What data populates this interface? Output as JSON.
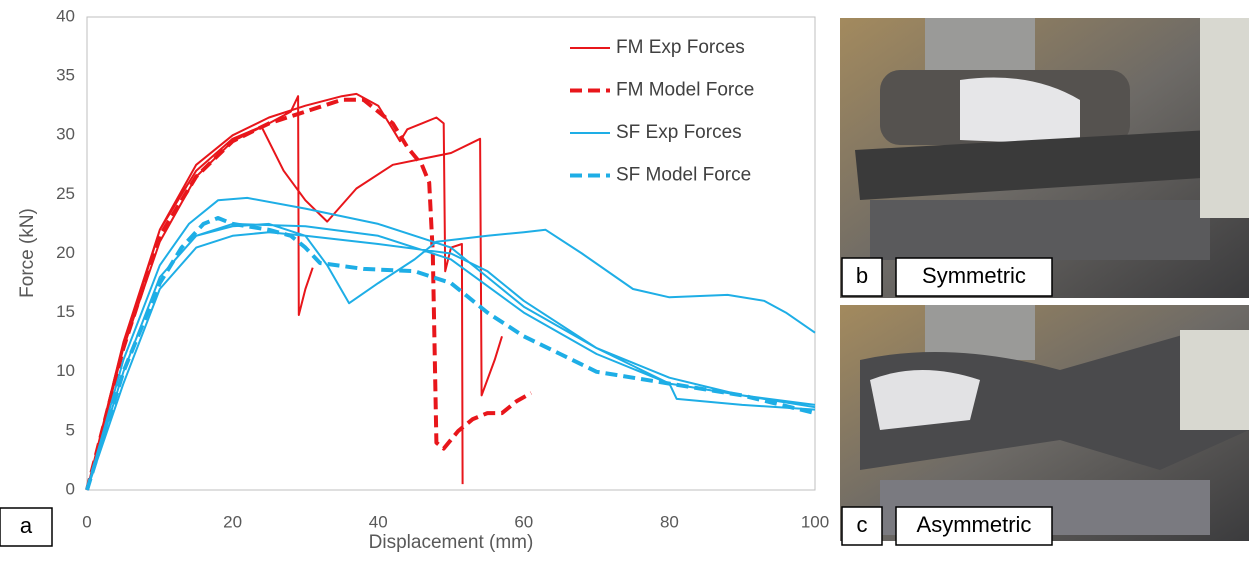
{
  "chart_data": {
    "type": "line",
    "xlabel": "Displacement (mm)",
    "ylabel": "Force (kN)",
    "xlim": [
      0,
      100
    ],
    "ylim": [
      0,
      40
    ],
    "xticks": [
      0,
      20,
      40,
      60,
      80,
      100
    ],
    "yticks": [
      0,
      5,
      10,
      15,
      20,
      25,
      30,
      35,
      40
    ],
    "grid": false,
    "legend": "upper right",
    "series": [
      {
        "name": "FM Exp Forces",
        "color": "#e8161b",
        "dash": false,
        "x": [
          0,
          5,
          10,
          15,
          20,
          24,
          27,
          30,
          33,
          37,
          42,
          46,
          50,
          54,
          54.2,
          56,
          57,
          null,
          0,
          5,
          10,
          15,
          20,
          25,
          28,
          29,
          29.1,
          30,
          31,
          null,
          0,
          5,
          10,
          15,
          20,
          25,
          30,
          35,
          37,
          40,
          42,
          43,
          44,
          46,
          48,
          49,
          49.2,
          50,
          51.5,
          51.6
        ],
        "values": [
          0,
          12,
          21,
          26.5,
          29.5,
          30.7,
          27,
          24.5,
          22.7,
          25.5,
          27.5,
          28,
          28.5,
          29.7,
          8,
          11,
          13,
          null,
          0,
          12.5,
          22,
          27,
          29.7,
          31,
          32,
          33.3,
          14.8,
          17,
          18.8,
          null,
          0,
          12,
          22,
          27.5,
          30,
          31.5,
          32.5,
          33.3,
          33.5,
          32.5,
          30.5,
          29.5,
          30.5,
          31,
          31.5,
          31,
          18.5,
          20.5,
          20.8,
          0.5
        ]
      },
      {
        "name": "FM Model Force",
        "color": "#e8161b",
        "dash": true,
        "x": [
          0,
          5,
          10,
          15,
          20,
          25,
          30,
          35,
          38,
          40,
          42,
          44,
          46,
          47,
          47.5,
          48,
          49,
          51,
          53,
          55,
          57,
          59,
          61
        ],
        "values": [
          0,
          12,
          21.5,
          26.5,
          29.5,
          31,
          32,
          33,
          33,
          32,
          31,
          29,
          27.5,
          26,
          20,
          4,
          3.5,
          5,
          6,
          6.5,
          6.5,
          7.5,
          8.2
        ]
      },
      {
        "name": "SF Exp Forces",
        "color": "#1eaee6",
        "dash": false,
        "x": [
          0,
          5,
          10,
          14,
          18,
          22,
          30,
          40,
          50,
          55,
          60,
          70,
          80,
          90,
          100,
          null,
          0,
          5,
          10,
          15,
          20,
          25,
          30,
          33,
          36,
          40,
          45,
          48,
          55,
          60,
          63,
          68,
          75,
          80,
          88,
          93,
          96,
          100,
          null,
          0,
          5,
          10,
          15,
          20,
          25,
          30,
          40,
          50,
          55,
          60,
          70,
          80,
          81,
          90,
          100,
          null,
          0,
          5,
          10,
          15,
          20,
          30,
          40,
          50,
          60,
          70,
          80,
          90,
          100
        ],
        "values": [
          0,
          11,
          19,
          22.5,
          24.5,
          24.7,
          23.8,
          22.5,
          20.5,
          18,
          15.5,
          12,
          9.5,
          8,
          7,
          null,
          0,
          10,
          18,
          21.5,
          22.3,
          22.5,
          21.5,
          19,
          15.8,
          17.5,
          19.5,
          21,
          21.5,
          21.8,
          22,
          20,
          17,
          16.3,
          16.5,
          16,
          15,
          13.3,
          null,
          0,
          9,
          17,
          20.5,
          21.5,
          21.8,
          21.5,
          20.8,
          20,
          18.5,
          16,
          12,
          9,
          7.7,
          7.2,
          6.8,
          null,
          0,
          10,
          18,
          21.5,
          22.5,
          22.3,
          21.5,
          19.5,
          15,
          11.5,
          9,
          8,
          7.2
        ]
      },
      {
        "name": "SF Model Force",
        "color": "#1eaee6",
        "dash": true,
        "x": [
          0,
          5,
          10,
          13,
          16,
          18,
          20,
          25,
          28,
          30,
          32,
          38,
          45,
          50,
          55,
          60,
          65,
          70,
          80,
          90,
          100
        ],
        "values": [
          0,
          10,
          17.5,
          20.5,
          22.5,
          23,
          22.5,
          22,
          21.5,
          20.5,
          19.2,
          18.7,
          18.5,
          17.5,
          15,
          13,
          11.5,
          10,
          9,
          8,
          6.5
        ]
      }
    ]
  },
  "panels": [
    {
      "letter": "a"
    },
    {
      "letter": "b",
      "caption": "Symmetric"
    },
    {
      "letter": "c",
      "caption": "Asymmetric"
    }
  ]
}
